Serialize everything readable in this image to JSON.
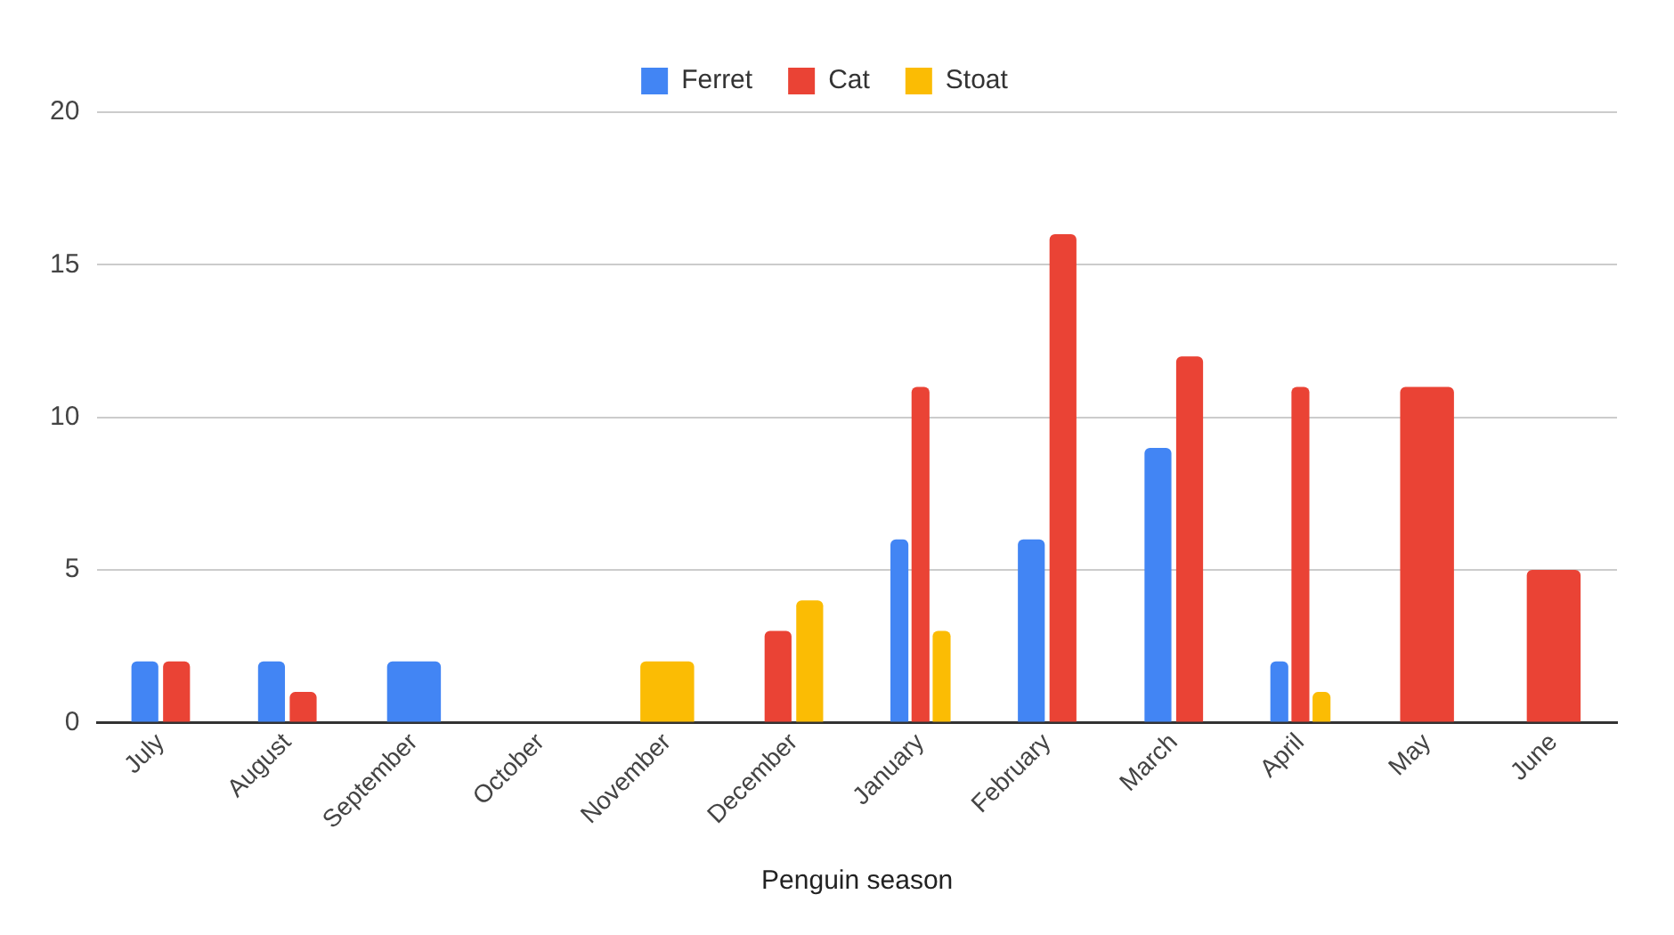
{
  "chart_data": {
    "type": "bar",
    "xlabel": "Penguin season",
    "categories": [
      "July",
      "August",
      "September",
      "October",
      "November",
      "December",
      "January",
      "February",
      "March",
      "April",
      "May",
      "June"
    ],
    "series": [
      {
        "name": "Ferret",
        "color": "#4285f4",
        "values": [
          2,
          2,
          2,
          null,
          null,
          null,
          6,
          6,
          9,
          2,
          null,
          null
        ]
      },
      {
        "name": "Cat",
        "color": "#ea4335",
        "values": [
          2,
          1,
          null,
          null,
          null,
          3,
          11,
          16,
          12,
          11,
          11,
          5
        ]
      },
      {
        "name": "Stoat",
        "color": "#fbbc04",
        "values": [
          null,
          null,
          null,
          null,
          2,
          4,
          3,
          null,
          null,
          1,
          null,
          null
        ]
      }
    ],
    "ylim": [
      0,
      20
    ],
    "yticks": [
      0,
      5,
      10,
      15,
      20
    ],
    "grid": "y",
    "legend": "top"
  }
}
